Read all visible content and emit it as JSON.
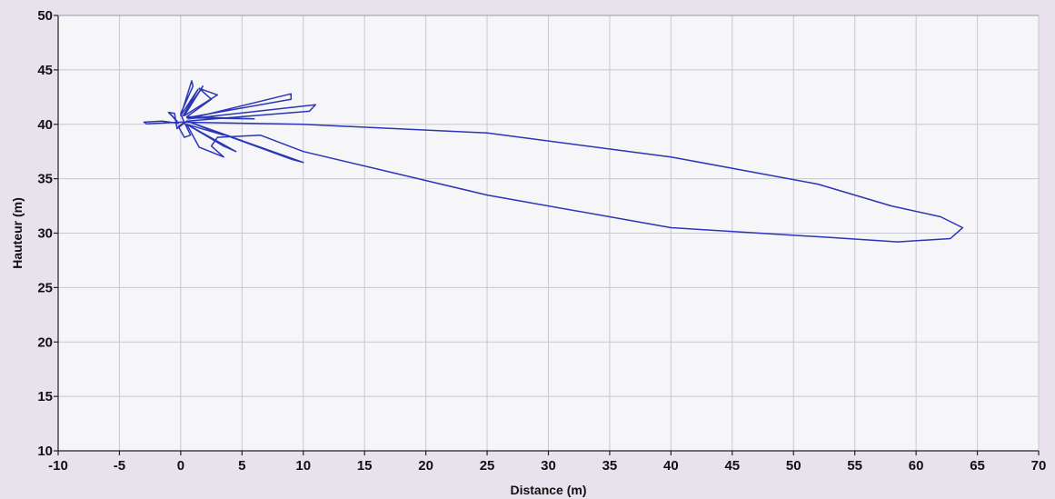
{
  "chart_data": {
    "type": "line",
    "title": "",
    "xlabel": "Distance (m)",
    "ylabel": "Hauteur (m)",
    "xlim": [
      -10,
      70
    ],
    "ylim": [
      10,
      50
    ],
    "x_ticks": [
      -10,
      -5,
      0,
      5,
      10,
      15,
      20,
      25,
      30,
      35,
      40,
      45,
      50,
      55,
      60,
      65,
      70
    ],
    "y_ticks": [
      10,
      15,
      20,
      25,
      30,
      35,
      40,
      45,
      50
    ],
    "x_tick_labels": [
      "-10",
      "-5",
      "0",
      "5",
      "10",
      "15",
      "20",
      "25",
      "30",
      "35",
      "40",
      "45",
      "50",
      "55",
      "60",
      "65",
      "70"
    ],
    "y_tick_labels": [
      "10",
      "15",
      "20",
      "25",
      "30",
      "35",
      "40",
      "45",
      "50"
    ],
    "grid": true,
    "legend": "none",
    "line_color": "#2a35b8",
    "series": [
      {
        "x": [
          0,
          10,
          25,
          40,
          52,
          58,
          62,
          63.8,
          62.8,
          58.5,
          53,
          40,
          25,
          10,
          6.5,
          3,
          2.5,
          3.5,
          1.5,
          0.5,
          3.5,
          4.5,
          0.5,
          3.5,
          0.5,
          9,
          10,
          0.5,
          10.5,
          11,
          0.6,
          9,
          9,
          0.5,
          6,
          0.5,
          2.5,
          1.5,
          3,
          0.3,
          1.8,
          0.2,
          1.4,
          0,
          0.9,
          1,
          0,
          0.2,
          0.8,
          0.3,
          -0.2,
          0.5,
          -0.3,
          -0.5,
          -1,
          -0.3,
          -0.8,
          -0.2,
          -1.5,
          -3,
          -2.8,
          0
        ],
        "y": [
          40.2,
          40,
          39.2,
          37,
          34.5,
          32.5,
          31.5,
          30.5,
          29.5,
          29.2,
          29.6,
          30.5,
          33.5,
          37.5,
          39,
          38.8,
          38,
          37,
          37.9,
          40,
          38,
          37.5,
          40,
          39,
          40.3,
          36.8,
          36.5,
          40.3,
          41.2,
          41.8,
          40.5,
          42.8,
          42.3,
          40.6,
          40.5,
          40.7,
          42.3,
          43.3,
          42.7,
          40.8,
          43.5,
          40.8,
          43.2,
          40.8,
          44,
          43.5,
          41,
          40.4,
          39,
          38.8,
          39.8,
          40.3,
          39.6,
          41,
          41.1,
          40.3,
          40.9,
          40.1,
          40.3,
          40.2,
          40.05,
          40.2
        ]
      }
    ]
  }
}
